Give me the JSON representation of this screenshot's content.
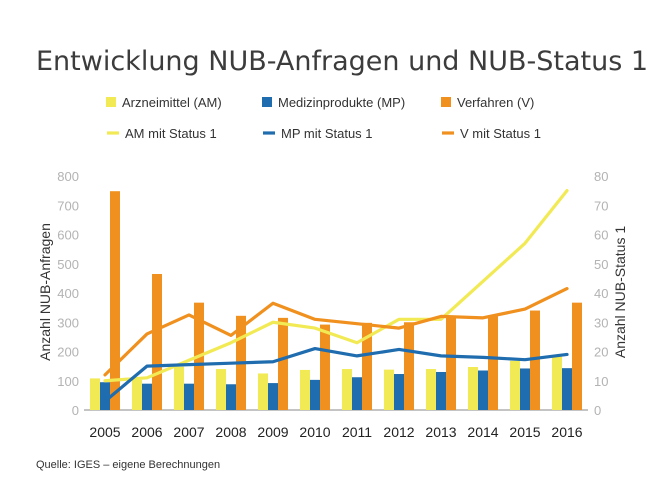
{
  "title": "Entwicklung NUB-Anfragen und NUB-Status 1",
  "source": "Quelle: IGES – eigene Berechnungen",
  "colors": {
    "am": "#f2ea54",
    "mp": "#1f6cae",
    "v": "#f0901e",
    "tick": "#b3b3b3"
  },
  "chart_data": {
    "type": "bar",
    "title": "Entwicklung NUB-Anfragen und NUB-Status 1",
    "categories": [
      "2005",
      "2006",
      "2007",
      "2008",
      "2009",
      "2010",
      "2011",
      "2012",
      "2013",
      "2014",
      "2015",
      "2016"
    ],
    "ylabel": "Anzahl NUB-Anfragen",
    "y2label": "Anzahl NUB-Status 1",
    "ylim": [
      0,
      800
    ],
    "y2lim": [
      0,
      80
    ],
    "yticks": [
      "0",
      "100",
      "200",
      "300",
      "400",
      "500",
      "600",
      "700",
      "800"
    ],
    "y2ticks": [
      "0",
      "10",
      "20",
      "30",
      "40",
      "50",
      "60",
      "70",
      "80"
    ],
    "grid": false,
    "legend_position": "top",
    "bar_series": [
      {
        "name": "Arzneimittel (AM)",
        "color": "#f2ea54",
        "values": [
          108,
          103,
          148,
          140,
          125,
          137,
          140,
          138,
          140,
          147,
          168,
          183
        ]
      },
      {
        "name": "Medizinprodukte (MP)",
        "color": "#1f6cae",
        "values": [
          95,
          90,
          90,
          88,
          92,
          103,
          112,
          123,
          130,
          135,
          142,
          143
        ]
      },
      {
        "name": "Verfahren (V)",
        "color": "#f0901e",
        "values": [
          748,
          465,
          367,
          322,
          315,
          292,
          298,
          300,
          318,
          320,
          340,
          367
        ]
      }
    ],
    "line_series": [
      {
        "name": "AM mit Status 1",
        "color": "#f2ea54",
        "axis": "right",
        "values": [
          10,
          11,
          17,
          23,
          30,
          28,
          23,
          31,
          31,
          44,
          57,
          75
        ]
      },
      {
        "name": "MP mit Status 1",
        "color": "#1f6cae",
        "axis": "right",
        "values": [
          3,
          15,
          15.5,
          16,
          16.5,
          21,
          18.5,
          20.7,
          18.5,
          18,
          17.2,
          19
        ]
      },
      {
        "name": "V mit Status 1",
        "color": "#f0901e",
        "axis": "right",
        "values": [
          12,
          26,
          32.5,
          25.5,
          36.5,
          31,
          29.5,
          28,
          32,
          31.5,
          34.5,
          41.5
        ]
      }
    ]
  }
}
